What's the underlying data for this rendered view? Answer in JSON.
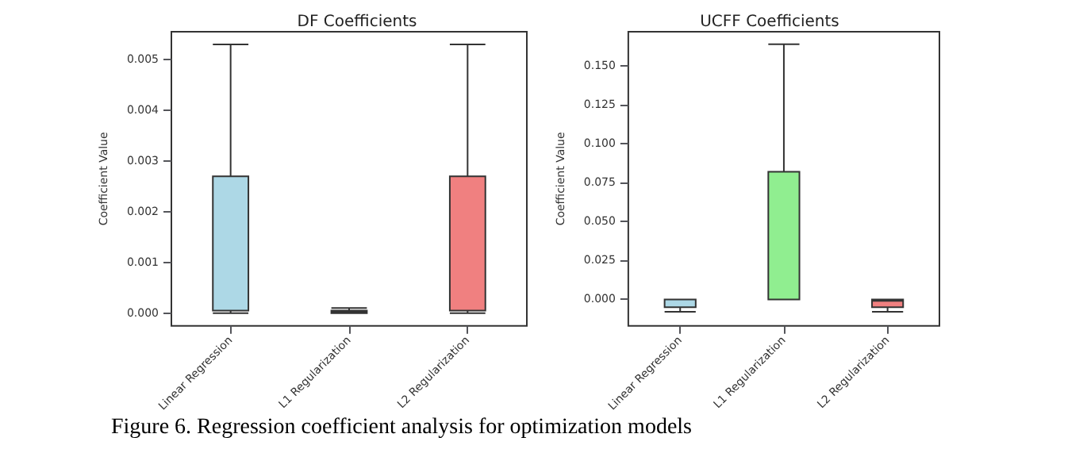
{
  "chart_data": [
    {
      "type": "box",
      "title": "DF Coefficients",
      "ylabel": "Coefficient Value",
      "categories": [
        "Linear Regression",
        "L1 Regularization",
        "L2 Regularization"
      ],
      "colors": [
        "#add8e6",
        "#90ee90",
        "#f08080"
      ],
      "boxes": [
        {
          "low": 0,
          "q1": 5e-05,
          "median": 5e-05,
          "q3": 0.0027,
          "high": 0.0053
        },
        {
          "low": 0,
          "q1": 0,
          "median": 3e-05,
          "q3": 5e-05,
          "high": 0.0001
        },
        {
          "low": 0,
          "q1": 5e-05,
          "median": 5e-05,
          "q3": 0.0027,
          "high": 0.0053
        }
      ],
      "ylim": [
        -0.00025,
        0.00555
      ],
      "yticks": [
        {
          "value": 0,
          "label": "0.000"
        },
        {
          "value": 0.001,
          "label": "0.001"
        },
        {
          "value": 0.002,
          "label": "0.002"
        },
        {
          "value": 0.003,
          "label": "0.003"
        },
        {
          "value": 0.004,
          "label": "0.004"
        },
        {
          "value": 0.005,
          "label": "0.005"
        }
      ],
      "grid": false,
      "annotations": [
        "Figure 6. Regression coefficient analysis for optimization models"
      ]
    },
    {
      "type": "box",
      "title": "UCFF Coefficients",
      "ylabel": "Coefficient Value",
      "categories": [
        "Linear Regression",
        "L1 Regularization",
        "L2 Regularization"
      ],
      "colors": [
        "#add8e6",
        "#90ee90",
        "#f08080"
      ],
      "boxes": [
        {
          "low": -0.008,
          "q1": -0.005,
          "median": 0,
          "q3": 0,
          "high": 0
        },
        {
          "low": 0,
          "q1": 0,
          "median": 0,
          "q3": 0.082,
          "high": 0.164
        },
        {
          "low": -0.008,
          "q1": -0.005,
          "median": -0.001,
          "q3": 0,
          "high": 0
        }
      ],
      "ylim": [
        -0.017,
        0.172
      ],
      "yticks": [
        {
          "value": 0,
          "label": "0.000"
        },
        {
          "value": 0.025,
          "label": "0.025"
        },
        {
          "value": 0.05,
          "label": "0.050"
        },
        {
          "value": 0.075,
          "label": "0.075"
        },
        {
          "value": 0.1,
          "label": "0.100"
        },
        {
          "value": 0.125,
          "label": "0.125"
        },
        {
          "value": 0.15,
          "label": "0.150"
        }
      ],
      "grid": false
    }
  ]
}
